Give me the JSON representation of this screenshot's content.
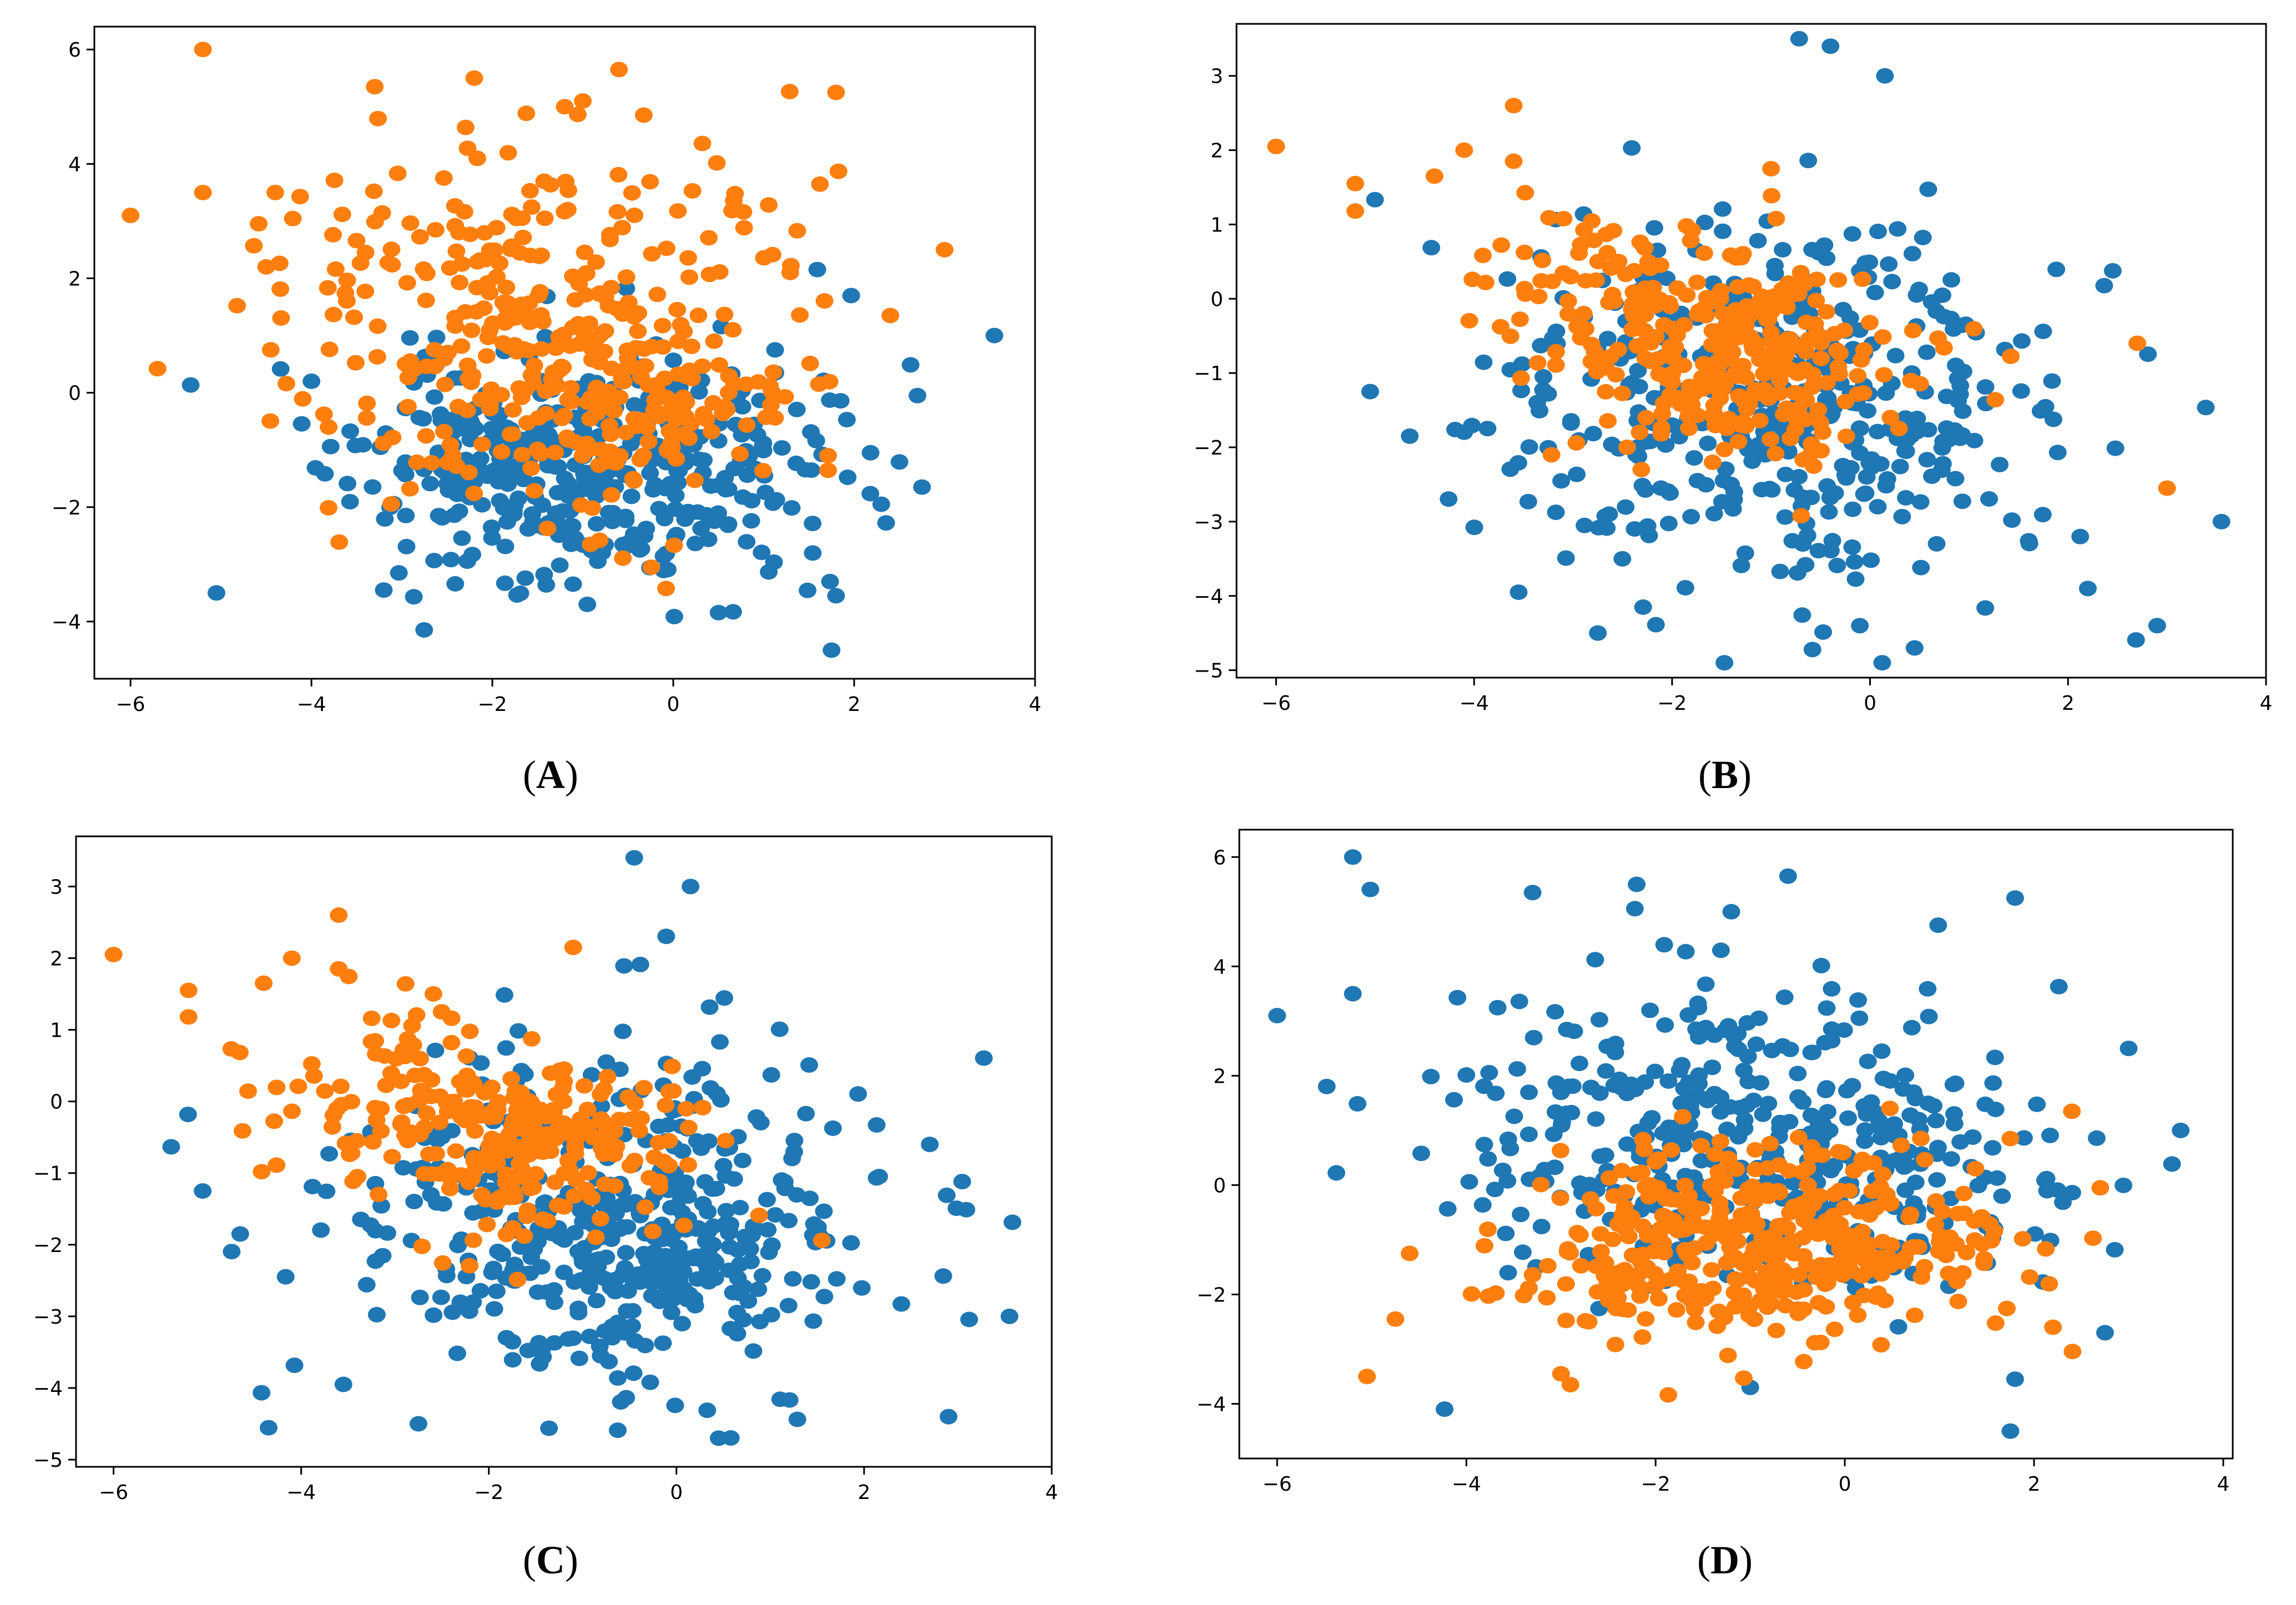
{
  "colors": {
    "blue": "#1f77b4",
    "orange": "#ff7f0e"
  },
  "chart_data": [
    {
      "type": "scatter",
      "panel": "A",
      "caption": "(A)",
      "caption_letter": "A",
      "xlim": [
        -6.4,
        4.0
      ],
      "ylim": [
        -5.0,
        6.4
      ],
      "xticks": [
        -6,
        -4,
        -2,
        0,
        2,
        4
      ],
      "yticks": [
        -4,
        -2,
        0,
        2,
        4,
        6
      ],
      "clusters": [
        {
          "series": "blue",
          "cx": -1.0,
          "cy": -1.3,
          "sx": 1.25,
          "sy": 1.0,
          "n": 420,
          "seed": 11
        },
        {
          "series": "orange",
          "cx": -1.5,
          "cy": 1.2,
          "sx": 1.35,
          "sy": 1.55,
          "n": 330,
          "seed": 12
        },
        {
          "series": "orange",
          "cx": -0.6,
          "cy": -0.3,
          "sx": 0.9,
          "sy": 0.6,
          "n": 90,
          "seed": 13
        }
      ],
      "extra": {
        "blue": [
          [
            3.55,
            1.0
          ],
          [
            1.75,
            -4.5
          ],
          [
            1.8,
            -3.55
          ],
          [
            -5.05,
            -3.5
          ],
          [
            2.75,
            -1.65
          ],
          [
            2.7,
            -0.05
          ],
          [
            -4.0,
            0.2
          ],
          [
            -3.2,
            -3.45
          ],
          [
            -0.95,
            -3.7
          ],
          [
            2.3,
            -1.95
          ]
        ],
        "orange": [
          [
            -6.0,
            3.1
          ],
          [
            -5.2,
            6.0
          ],
          [
            -5.2,
            3.5
          ],
          [
            -2.2,
            5.5
          ],
          [
            -0.6,
            5.65
          ],
          [
            1.8,
            5.25
          ],
          [
            3.0,
            2.5
          ],
          [
            -3.3,
            5.35
          ],
          [
            -1.2,
            5.0
          ],
          [
            2.4,
            1.35
          ],
          [
            -4.4,
            3.5
          ],
          [
            -4.5,
            2.2
          ],
          [
            -1.0,
            5.1
          ]
        ]
      }
    },
    {
      "type": "scatter",
      "panel": "B",
      "caption": "(B)",
      "caption_letter": "B",
      "xlim": [
        -6.4,
        4.0
      ],
      "ylim": [
        -5.1,
        3.7
      ],
      "xticks": [
        -6,
        -4,
        -2,
        0,
        2,
        4
      ],
      "yticks": [
        -5,
        -4,
        -3,
        -2,
        -1,
        0,
        1,
        2,
        3
      ],
      "clusters": [
        {
          "series": "blue",
          "cx": -0.9,
          "cy": -1.4,
          "sx": 1.45,
          "sy": 1.3,
          "n": 430,
          "seed": 21
        },
        {
          "series": "orange",
          "cx": -1.4,
          "cy": -0.75,
          "sx": 0.85,
          "sy": 0.65,
          "n": 280,
          "seed": 22
        },
        {
          "series": "orange",
          "cx": -2.9,
          "cy": 0.2,
          "sx": 0.7,
          "sy": 0.6,
          "n": 55,
          "seed": 23
        }
      ],
      "extra": {
        "blue": [
          [
            -0.4,
            3.4
          ],
          [
            0.15,
            3.0
          ],
          [
            3.55,
            -3.0
          ],
          [
            0.45,
            -4.7
          ],
          [
            -2.75,
            -4.5
          ],
          [
            -4.65,
            -1.85
          ],
          [
            -5.05,
            -1.25
          ],
          [
            2.9,
            -4.4
          ],
          [
            -3.55,
            -3.95
          ],
          [
            2.2,
            -3.9
          ]
        ],
        "orange": [
          [
            -6.0,
            2.05
          ],
          [
            -5.2,
            1.55
          ],
          [
            -5.2,
            1.18
          ],
          [
            -3.6,
            2.6
          ],
          [
            -4.1,
            2.0
          ],
          [
            -4.4,
            1.65
          ],
          [
            3.0,
            -2.55
          ],
          [
            2.7,
            -0.6
          ],
          [
            -3.6,
            1.85
          ],
          [
            -1.0,
            1.75
          ]
        ]
      }
    },
    {
      "type": "scatter",
      "panel": "C",
      "caption": "(C)",
      "caption_letter": "C",
      "xlim": [
        -6.4,
        4.0
      ],
      "ylim": [
        -5.1,
        3.7
      ],
      "xticks": [
        -6,
        -4,
        -2,
        0,
        2,
        4
      ],
      "yticks": [
        -5,
        -4,
        -3,
        -2,
        -1,
        0,
        1,
        2,
        3
      ],
      "clusters": [
        {
          "series": "blue",
          "cx": -0.6,
          "cy": -1.6,
          "sx": 1.45,
          "sy": 1.25,
          "n": 430,
          "seed": 31
        },
        {
          "series": "blue",
          "cx": 0.0,
          "cy": -2.2,
          "sx": 0.45,
          "sy": 0.45,
          "n": 60,
          "seed": 34
        },
        {
          "series": "orange",
          "cx": -1.6,
          "cy": -0.55,
          "sx": 0.85,
          "sy": 0.6,
          "n": 240,
          "seed": 32
        },
        {
          "series": "orange",
          "cx": -3.2,
          "cy": 0.3,
          "sx": 0.7,
          "sy": 0.55,
          "n": 55,
          "seed": 33
        }
      ],
      "extra": {
        "blue": [
          [
            -0.45,
            3.4
          ],
          [
            0.15,
            3.0
          ],
          [
            3.55,
            -3.0
          ],
          [
            0.45,
            -4.7
          ],
          [
            -2.75,
            -4.5
          ],
          [
            -4.65,
            -1.85
          ],
          [
            -5.05,
            -1.25
          ],
          [
            2.9,
            -4.4
          ],
          [
            -3.55,
            -3.95
          ],
          [
            2.7,
            -0.6
          ]
        ],
        "orange": [
          [
            -6.0,
            2.05
          ],
          [
            -5.2,
            1.55
          ],
          [
            -5.2,
            1.18
          ],
          [
            -3.6,
            2.6
          ],
          [
            -4.1,
            2.0
          ],
          [
            -4.4,
            1.65
          ],
          [
            -1.1,
            2.15
          ],
          [
            -3.6,
            1.85
          ],
          [
            -3.4,
            -1.05
          ]
        ]
      }
    },
    {
      "type": "scatter",
      "panel": "D",
      "caption": "(D)",
      "caption_letter": "D",
      "xlim": [
        -6.4,
        4.1
      ],
      "ylim": [
        -5.0,
        6.5
      ],
      "xticks": [
        -6,
        -4,
        -2,
        0,
        2,
        4
      ],
      "yticks": [
        -4,
        -2,
        0,
        2,
        4,
        6
      ],
      "clusters": [
        {
          "series": "blue",
          "cx": -1.3,
          "cy": 1.1,
          "sx": 1.45,
          "sy": 1.55,
          "n": 340,
          "seed": 41
        },
        {
          "series": "blue",
          "cx": 0.3,
          "cy": -0.2,
          "sx": 1.1,
          "sy": 0.8,
          "n": 90,
          "seed": 44
        },
        {
          "series": "orange",
          "cx": -1.0,
          "cy": -1.05,
          "sx": 1.3,
          "sy": 0.85,
          "n": 410,
          "seed": 42
        }
      ],
      "extra": {
        "blue": [
          [
            -6.0,
            3.1
          ],
          [
            -5.2,
            6.0
          ],
          [
            -5.2,
            3.5
          ],
          [
            -2.2,
            5.5
          ],
          [
            -0.6,
            5.65
          ],
          [
            1.8,
            5.25
          ],
          [
            3.55,
            1.0
          ],
          [
            3.0,
            2.5
          ],
          [
            1.75,
            -4.5
          ],
          [
            1.8,
            -3.55
          ],
          [
            2.75,
            -2.7
          ],
          [
            -3.3,
            5.35
          ],
          [
            -1.2,
            5.0
          ],
          [
            -1.0,
            -3.7
          ]
        ],
        "orange": [
          [
            -5.05,
            -3.5
          ],
          [
            -4.75,
            -2.45
          ],
          [
            -4.6,
            -1.25
          ],
          [
            -2.9,
            -3.65
          ],
          [
            -3.0,
            -3.45
          ],
          [
            2.2,
            -2.6
          ],
          [
            2.4,
            1.35
          ],
          [
            2.7,
            -0.05
          ],
          [
            1.75,
            0.85
          ]
        ]
      }
    }
  ]
}
